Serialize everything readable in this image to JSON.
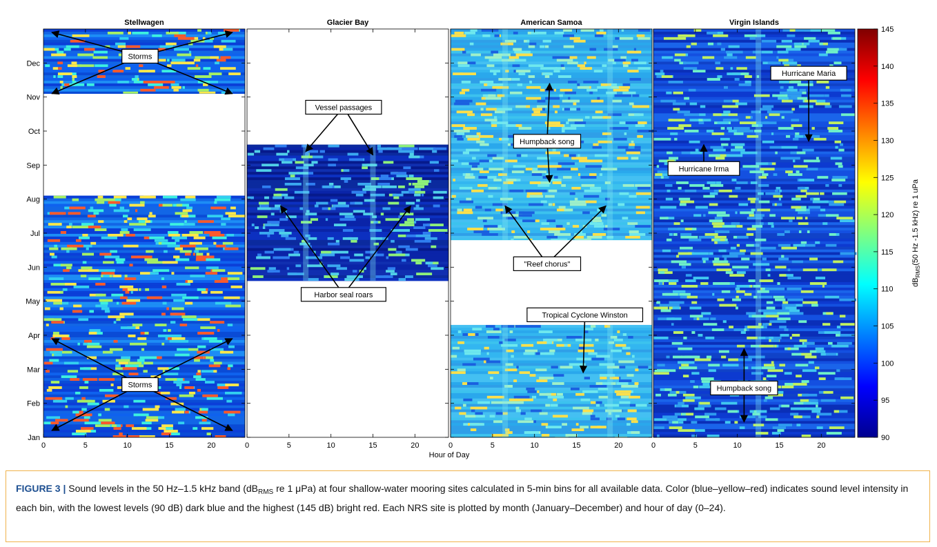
{
  "chart_data": {
    "type": "heatmap",
    "panels": [
      {
        "name": "Stellwagen",
        "coverage": [
          [
            0,
            7.1
          ],
          [
            10.1,
            12.0
          ]
        ],
        "palette": "s",
        "vertical_bands": []
      },
      {
        "name": "Glacier Bay",
        "coverage": [
          [
            4.6,
            8.6
          ]
        ],
        "palette": "g",
        "vertical_bands": [
          7,
          15
        ]
      },
      {
        "name": "American Samoa",
        "coverage": [
          [
            0,
            3.3
          ],
          [
            5.8,
            12.0
          ]
        ],
        "palette": "a",
        "vertical_bands": [
          6.5,
          19
        ]
      },
      {
        "name": "Virgin Islands",
        "coverage": [
          [
            0,
            12.0
          ]
        ],
        "palette": "v",
        "vertical_bands": [
          12.5
        ]
      }
    ],
    "months": [
      "Jan",
      "Feb",
      "Mar",
      "Apr",
      "May",
      "Jun",
      "Jul",
      "Aug",
      "Sep",
      "Oct",
      "Nov",
      "Dec"
    ],
    "x_ticks": [
      "0",
      "5",
      "10",
      "15",
      "20"
    ],
    "x_ticks_values": [
      0,
      5,
      10,
      15,
      20
    ],
    "xlim": [
      0,
      24
    ],
    "ylim_months": [
      0,
      12
    ],
    "xlabel": "Hour of Day",
    "colorbar": {
      "min": 90,
      "max": 145,
      "ticks": [
        "90",
        "95",
        "100",
        "105",
        "110",
        "115",
        "120",
        "125",
        "130",
        "135",
        "140",
        "145"
      ],
      "tick_values": [
        90,
        95,
        100,
        105,
        110,
        115,
        120,
        125,
        130,
        135,
        140,
        145
      ],
      "label": "dB",
      "label_sub": "RMS",
      "label_rest": "(50 Hz -1.5 kHz) re 1 uPa",
      "colormap": "jet"
    },
    "annotations": [
      {
        "panel": 0,
        "text": "Storms",
        "box_hour": 11.5,
        "box_month": 11.2,
        "arrows_to": [
          [
            1,
            11.9
          ],
          [
            22.5,
            11.9
          ],
          [
            1,
            10.1
          ],
          [
            22.5,
            10.1
          ]
        ]
      },
      {
        "panel": 0,
        "text": "Storms",
        "box_hour": 11.5,
        "box_month": 1.55,
        "arrows_to": [
          [
            1,
            2.9
          ],
          [
            22.5,
            2.9
          ],
          [
            1,
            0.2
          ],
          [
            22.5,
            0.2
          ]
        ]
      },
      {
        "panel": 1,
        "text": "Vessel passages",
        "box_hour": 11.5,
        "box_month": 9.7,
        "arrows_to": [
          [
            7,
            8.4
          ],
          [
            15,
            8.3
          ]
        ]
      },
      {
        "panel": 1,
        "text": "Harbor seal roars",
        "box_hour": 11.5,
        "box_month": 4.2,
        "arrows_to": [
          [
            4,
            6.8
          ],
          [
            19.5,
            6.8
          ]
        ]
      },
      {
        "panel": 2,
        "text": "Humpback song",
        "box_hour": 11.5,
        "box_month": 8.7,
        "arrows_to": [
          [
            11.8,
            10.4
          ],
          [
            11.8,
            7.5
          ]
        ]
      },
      {
        "panel": 2,
        "text": "\"Reef chorus\"",
        "box_hour": 11.5,
        "box_month": 5.1,
        "arrows_to": [
          [
            6.5,
            6.8
          ],
          [
            18.5,
            6.8
          ]
        ]
      },
      {
        "panel": 2,
        "text": "Tropical Cyclone Winston",
        "box_hour": 16,
        "box_month": 3.6,
        "arrows_to": [
          [
            15.8,
            1.9
          ]
        ]
      },
      {
        "panel": 3,
        "text": "Hurricane Maria",
        "box_hour": 18.5,
        "box_month": 10.7,
        "arrows_to": [
          [
            18.5,
            8.7
          ]
        ]
      },
      {
        "panel": 3,
        "text": "Hurricane Irma",
        "box_hour": 6,
        "box_month": 7.9,
        "arrows_to": [
          [
            6,
            8.6
          ]
        ]
      },
      {
        "panel": 3,
        "text": "Humpback song",
        "box_hour": 10.8,
        "box_month": 1.45,
        "arrows_to": [
          [
            10.8,
            2.6
          ],
          [
            10.8,
            0.45
          ]
        ]
      }
    ]
  },
  "caption": {
    "label": "FIGURE 3 |",
    "text_1": " Sound levels in the 50 Hz–1.5 kHz band (dB",
    "sub": "RMS",
    "text_2": " re 1 μPa) at four shallow-water mooring sites calculated in 5-min bins for all available data. Color (blue–yellow–red) indicates sound level intensity in each bin, with the lowest levels (90 dB) dark blue and the highest (145 dB) bright red. Each NRS site is plotted by month (January–December) and hour of day (0–24)."
  }
}
